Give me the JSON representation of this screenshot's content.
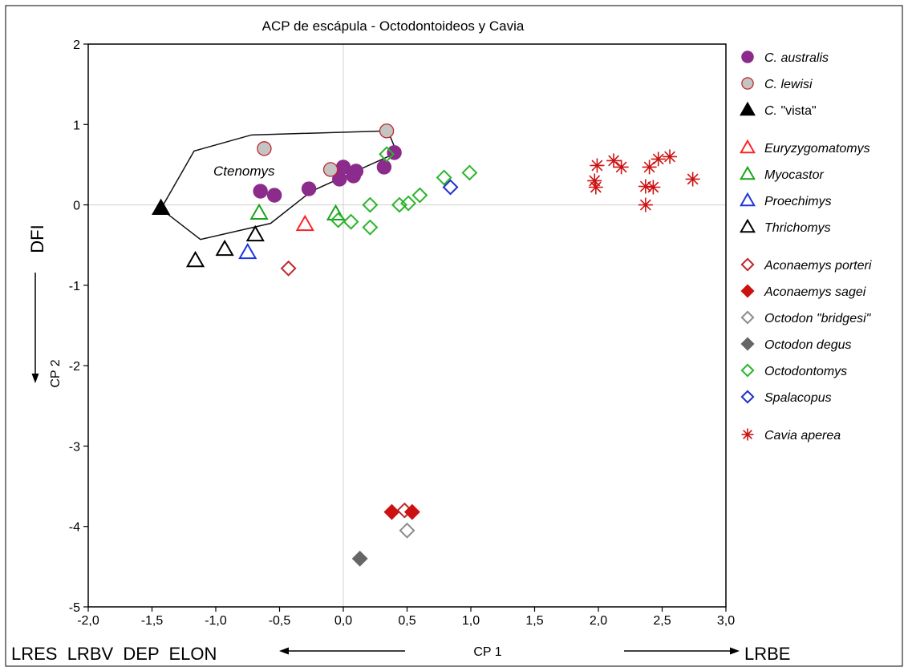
{
  "chart_data": {
    "type": "scatter",
    "title": "ACP de escápula - Octodontoideos y Cavia",
    "xlabel": "CP 1",
    "ylabel": "CP 2",
    "xlim": [
      -2.0,
      3.0
    ],
    "ylim": [
      -5,
      2
    ],
    "x_ticks": [
      -2.0,
      -1.5,
      -1.0,
      -0.5,
      0.0,
      0.5,
      1.0,
      1.5,
      2.0,
      2.5,
      3.0
    ],
    "x_tick_labels": [
      "-2,0",
      "-1,5",
      "-1,0",
      "-0,5",
      "0,0",
      "0,5",
      "1,0",
      "1,5",
      "2,0",
      "2,5",
      "3,0"
    ],
    "y_ticks": [
      -5,
      -4,
      -3,
      -2,
      -1,
      0,
      1,
      2
    ],
    "y_tick_labels": [
      "-5",
      "-4",
      "-3",
      "-2",
      "-1",
      "0",
      "1",
      "2"
    ],
    "grid": false,
    "zero_lines": true,
    "legend_position": "right",
    "annotations": {
      "x_left": "LRES  LRBV  DEP  ELON",
      "x_right": "LRBE",
      "y_left": "DFI",
      "hull_label": "Ctenomys"
    },
    "hull": {
      "label": "Ctenomys",
      "points": [
        [
          -1.43,
          -0.05
        ],
        [
          -1.17,
          0.67
        ],
        [
          -0.72,
          0.87
        ],
        [
          0.35,
          0.92
        ],
        [
          0.42,
          0.65
        ],
        [
          -0.25,
          0.17
        ],
        [
          -0.57,
          -0.23
        ],
        [
          -1.12,
          -0.43
        ],
        [
          -1.43,
          -0.05
        ]
      ]
    },
    "series": [
      {
        "name": "C. australis",
        "italic_part": "C. australis",
        "plain_part": "",
        "marker": "circle-filled",
        "color": "#8b2b8b",
        "edge": "#8b2b8b",
        "points": [
          [
            -0.65,
            0.17
          ],
          [
            -0.54,
            0.12
          ],
          [
            -0.27,
            0.2
          ],
          [
            -0.03,
            0.32
          ],
          [
            0.0,
            0.47
          ],
          [
            0.08,
            0.36
          ],
          [
            0.1,
            0.42
          ],
          [
            0.32,
            0.47
          ],
          [
            0.4,
            0.65
          ]
        ]
      },
      {
        "name": "C. lewisi",
        "italic_part": "C. lewisi",
        "plain_part": "",
        "marker": "circle-filled",
        "color": "#c4c4c4",
        "edge": "#c0272d",
        "points": [
          [
            -0.62,
            0.7
          ],
          [
            -0.1,
            0.44
          ],
          [
            0.34,
            0.92
          ]
        ]
      },
      {
        "name": "C. \"vista\"",
        "italic_part": "C.",
        "plain_part": " \"vista\"",
        "marker": "triangle-filled",
        "color": "#000000",
        "edge": "#000000",
        "points": [
          [
            -1.43,
            -0.04
          ]
        ]
      },
      {
        "name": "Euryzygomatomys",
        "italic_part": "Euryzygomatomys",
        "plain_part": "",
        "marker": "triangle-open",
        "color": "#ff2222",
        "edge": "#ff2222",
        "points": [
          [
            -0.3,
            -0.24
          ]
        ]
      },
      {
        "name": "Myocastor",
        "italic_part": "Myocastor",
        "plain_part": "",
        "marker": "triangle-open",
        "color": "#1aa31a",
        "edge": "#1aa31a",
        "points": [
          [
            -0.66,
            -0.1
          ],
          [
            -0.06,
            -0.11
          ]
        ]
      },
      {
        "name": "Proechimys",
        "italic_part": "Proechimys",
        "plain_part": "",
        "marker": "triangle-open",
        "color": "#1f35e0",
        "edge": "#1f35e0",
        "points": [
          [
            -0.75,
            -0.59
          ]
        ]
      },
      {
        "name": "Thrichomys",
        "italic_part": "Thrichomys",
        "plain_part": "",
        "marker": "triangle-open",
        "color": "#000000",
        "edge": "#000000",
        "points": [
          [
            -1.16,
            -0.69
          ],
          [
            -0.93,
            -0.55
          ],
          [
            -0.69,
            -0.37
          ]
        ]
      },
      {
        "name": "Aconaemys porteri",
        "italic_part": "Aconaemys porteri",
        "plain_part": "",
        "marker": "diamond-open",
        "color": "#c0272d",
        "edge": "#c0272d",
        "points": [
          [
            -0.43,
            -0.79
          ],
          [
            0.48,
            -3.8
          ]
        ]
      },
      {
        "name": "Aconaemys sagei",
        "italic_part": "Aconaemys sagei",
        "plain_part": "",
        "marker": "diamond-filled",
        "color": "#cc1111",
        "edge": "#cc1111",
        "points": [
          [
            0.38,
            -3.82
          ],
          [
            0.54,
            -3.82
          ]
        ]
      },
      {
        "name": "Octodon \"bridgesi\"",
        "italic_part": "Octodon \"bridgesi\"",
        "plain_part": "",
        "marker": "diamond-open",
        "color": "#8c8c8c",
        "edge": "#8c8c8c",
        "points": [
          [
            0.5,
            -4.05
          ]
        ]
      },
      {
        "name": "Octodon degus",
        "italic_part": "Octodon degus",
        "plain_part": "",
        "marker": "diamond-filled",
        "color": "#666666",
        "edge": "#666666",
        "points": [
          [
            0.13,
            -4.4
          ]
        ]
      },
      {
        "name": "Octodontomys",
        "italic_part": "Octodontomys",
        "plain_part": "",
        "marker": "diamond-open",
        "color": "#2bb52b",
        "edge": "#2bb52b",
        "points": [
          [
            -0.04,
            -0.19
          ],
          [
            0.06,
            -0.21
          ],
          [
            0.21,
            0.0
          ],
          [
            0.21,
            -0.28
          ],
          [
            0.34,
            0.63
          ],
          [
            0.44,
            0.0
          ],
          [
            0.51,
            0.02
          ],
          [
            0.6,
            0.12
          ],
          [
            0.79,
            0.34
          ],
          [
            0.99,
            0.4
          ]
        ]
      },
      {
        "name": "Spalacopus",
        "italic_part": "Spalacopus",
        "plain_part": "",
        "marker": "diamond-open",
        "color": "#1f2fd0",
        "edge": "#1f2fd0",
        "points": [
          [
            0.84,
            0.22
          ]
        ]
      },
      {
        "name": "Cavia aperea",
        "italic_part": "Cavia aperea",
        "plain_part": "",
        "marker": "asterisk",
        "color": "#cc1111",
        "edge": "#cc1111",
        "points": [
          [
            1.97,
            0.3
          ],
          [
            1.98,
            0.22
          ],
          [
            1.99,
            0.49
          ],
          [
            2.12,
            0.55
          ],
          [
            2.18,
            0.47
          ],
          [
            2.37,
            0.0
          ],
          [
            2.37,
            0.23
          ],
          [
            2.4,
            0.47
          ],
          [
            2.43,
            0.22
          ],
          [
            2.47,
            0.57
          ],
          [
            2.56,
            0.6
          ],
          [
            2.74,
            0.32
          ]
        ]
      }
    ]
  }
}
